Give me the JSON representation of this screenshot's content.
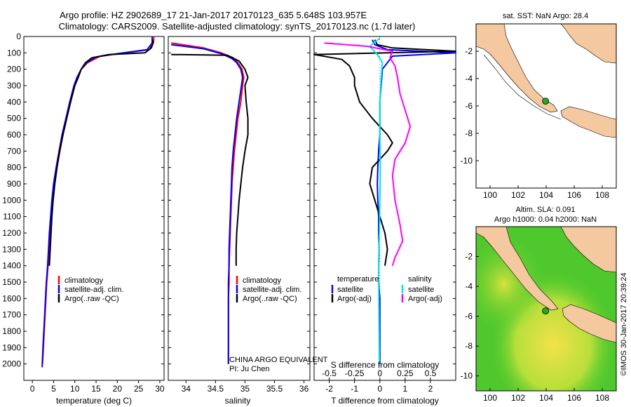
{
  "header": {
    "line1": "Argo profile: HZ 2902689_17 21-Jan-2017 20170123_635 5.648S 103.957E",
    "line2": "Climatology: CARS2009. Satellite-adjusted climatology: synTS_20170123.nc (1.7d later)"
  },
  "colors": {
    "red": "#ff0000",
    "blue": "#0000ff",
    "black": "#000000",
    "cyan": "#00e5e5",
    "magenta": "#ff00ff",
    "land": "#f5c9a0"
  },
  "chart_data": [
    {
      "type": "line",
      "xlabel": "temperature (deg C)",
      "ylabel": "",
      "xlim": [
        -2,
        31
      ],
      "ylim": [
        2100,
        0
      ],
      "xticks": [
        0,
        5,
        10,
        15,
        20,
        25,
        30
      ],
      "yticks": [
        0,
        100,
        200,
        300,
        400,
        500,
        600,
        700,
        800,
        900,
        1000,
        1100,
        1200,
        1300,
        1400,
        1500,
        1600,
        1700,
        1800,
        1900,
        2000
      ],
      "legend": [
        "climatology",
        "satellite-adj. clim.",
        "Argo(..raw -QC)"
      ],
      "series": [
        {
          "name": "climatology",
          "color": "red",
          "points": [
            [
              28.6,
              0
            ],
            [
              28.5,
              40
            ],
            [
              27.5,
              80
            ],
            [
              22,
              100
            ],
            [
              16,
              120
            ],
            [
              13,
              160
            ],
            [
              11.5,
              200
            ],
            [
              10.8,
              250
            ],
            [
              10,
              300
            ],
            [
              9,
              400
            ],
            [
              8,
              500
            ],
            [
              7.2,
              600
            ],
            [
              6.5,
              700
            ],
            [
              5.8,
              800
            ],
            [
              5.2,
              900
            ],
            [
              4.8,
              1000
            ],
            [
              4.5,
              1100
            ],
            [
              4.2,
              1200
            ],
            [
              3.9,
              1300
            ],
            [
              3.7,
              1400
            ],
            [
              3.4,
              1500
            ],
            [
              3.2,
              1600
            ],
            [
              3.0,
              1700
            ],
            [
              2.8,
              1800
            ],
            [
              2.6,
              1900
            ],
            [
              2.4,
              2000
            ]
          ]
        },
        {
          "name": "satellite-adj. clim.",
          "color": "blue",
          "points": [
            [
              28.2,
              0
            ],
            [
              28.2,
              40
            ],
            [
              27,
              80
            ],
            [
              20,
              105
            ],
            [
              15,
              125
            ],
            [
              12.8,
              160
            ],
            [
              11.5,
              200
            ],
            [
              10.5,
              250
            ],
            [
              9.8,
              300
            ],
            [
              8.8,
              400
            ],
            [
              7.9,
              500
            ],
            [
              7,
              600
            ],
            [
              6.3,
              700
            ],
            [
              5.6,
              800
            ],
            [
              5,
              900
            ],
            [
              4.6,
              1000
            ],
            [
              4.3,
              1100
            ],
            [
              4.0,
              1200
            ],
            [
              3.8,
              1300
            ],
            [
              3.6,
              1400
            ],
            [
              3.3,
              1500
            ],
            [
              3.1,
              1600
            ],
            [
              2.9,
              1700
            ],
            [
              2.7,
              1800
            ],
            [
              2.5,
              1900
            ],
            [
              2.3,
              2020
            ]
          ]
        },
        {
          "name": "Argo(..raw -QC)",
          "color": "black",
          "points": [
            [
              28.4,
              20
            ],
            [
              28.3,
              50
            ],
            [
              28,
              70
            ],
            [
              26.5,
              100
            ],
            [
              18,
              110
            ],
            [
              14,
              130
            ],
            [
              12.5,
              160
            ],
            [
              11.5,
              200
            ],
            [
              10.8,
              250
            ],
            [
              10,
              300
            ],
            [
              9,
              400
            ],
            [
              8.1,
              500
            ],
            [
              7.2,
              600
            ],
            [
              6.4,
              700
            ],
            [
              5.8,
              800
            ],
            [
              5.3,
              900
            ],
            [
              4.9,
              1000
            ],
            [
              4.6,
              1100
            ],
            [
              4.4,
              1200
            ],
            [
              4.2,
              1300
            ],
            [
              4.0,
              1400
            ]
          ]
        }
      ]
    },
    {
      "type": "line",
      "xlabel": "salinity",
      "xlim": [
        33.7,
        36.1
      ],
      "ylim": [
        2100,
        0
      ],
      "xticks": [
        34,
        34.5,
        35,
        35.5,
        36
      ],
      "legend": [
        "climatology",
        "satellite-adj. clim.",
        "Argo(..raw -QC)"
      ],
      "annotations": [
        "CHINA ARGO EQUIVALENT",
        "PI: Ju Chen"
      ],
      "series": [
        {
          "name": "climatology",
          "color": "red",
          "points": [
            [
              33.75,
              40
            ],
            [
              34.3,
              70
            ],
            [
              34.6,
              100
            ],
            [
              34.8,
              130
            ],
            [
              34.88,
              160
            ],
            [
              34.95,
              200
            ],
            [
              34.98,
              250
            ],
            [
              34.96,
              300
            ],
            [
              34.93,
              400
            ],
            [
              34.88,
              500
            ],
            [
              34.85,
              600
            ],
            [
              34.82,
              700
            ],
            [
              34.8,
              800
            ],
            [
              34.78,
              900
            ],
            [
              34.77,
              1000
            ],
            [
              34.76,
              1100
            ],
            [
              34.75,
              1200
            ],
            [
              34.74,
              1300
            ],
            [
              34.73,
              1400
            ],
            [
              34.73,
              1500
            ],
            [
              34.72,
              1600
            ],
            [
              34.72,
              1700
            ],
            [
              34.72,
              1800
            ],
            [
              34.72,
              1900
            ],
            [
              34.72,
              2000
            ]
          ]
        },
        {
          "name": "satellite-adj. clim.",
          "color": "blue",
          "points": [
            [
              33.75,
              50
            ],
            [
              34.3,
              75
            ],
            [
              34.6,
              105
            ],
            [
              34.78,
              135
            ],
            [
              34.86,
              160
            ],
            [
              34.93,
              200
            ],
            [
              34.96,
              250
            ],
            [
              34.94,
              300
            ],
            [
              34.9,
              400
            ],
            [
              34.86,
              500
            ],
            [
              34.83,
              600
            ],
            [
              34.8,
              700
            ],
            [
              34.78,
              800
            ],
            [
              34.77,
              900
            ],
            [
              34.76,
              1000
            ],
            [
              34.75,
              1100
            ],
            [
              34.74,
              1200
            ],
            [
              34.73,
              1300
            ],
            [
              34.73,
              1400
            ],
            [
              34.72,
              1500
            ],
            [
              34.72,
              1600
            ],
            [
              34.72,
              1700
            ],
            [
              34.72,
              1800
            ],
            [
              34.72,
              1900
            ],
            [
              34.72,
              2000
            ]
          ]
        },
        {
          "name": "Argo(..raw -QC)",
          "color": "black",
          "points": [
            [
              33.75,
              110
            ],
            [
              34.2,
              112
            ],
            [
              34.7,
              115
            ],
            [
              34.9,
              150
            ],
            [
              35.0,
              200
            ],
            [
              35.05,
              250
            ],
            [
              35.0,
              300
            ],
            [
              35.02,
              400
            ],
            [
              35.05,
              500
            ],
            [
              35.05,
              600
            ],
            [
              35.0,
              700
            ],
            [
              34.96,
              800
            ],
            [
              34.93,
              900
            ],
            [
              34.9,
              1000
            ],
            [
              34.88,
              1100
            ],
            [
              34.86,
              1200
            ],
            [
              34.85,
              1300
            ],
            [
              34.85,
              1400
            ]
          ]
        }
      ]
    },
    {
      "type": "line",
      "xlabel": "T difference from climatology",
      "x2label": "S difference from climatology",
      "xlim": [
        -2.6,
        3.0
      ],
      "ylim": [
        2100,
        0
      ],
      "xticks": [
        -2,
        -1,
        0,
        1,
        2
      ],
      "x2ticks": [
        "-0.5",
        "-0.25",
        "0",
        "0.25",
        "0.5"
      ],
      "legend_headers": [
        "temperature",
        "salinity"
      ],
      "legend": [
        "satellite",
        "Argo(-adj)",
        "satellite",
        "Argo(-adj)"
      ],
      "series": [
        {
          "name": "satellite",
          "color": "blue",
          "points": [
            [
              -0.3,
              20
            ],
            [
              -0.2,
              50
            ],
            [
              0.3,
              80
            ],
            [
              3.0,
              100
            ],
            [
              0.5,
              120
            ],
            [
              0.3,
              160
            ],
            [
              0.1,
              200
            ],
            [
              0.05,
              300
            ],
            [
              0,
              400
            ],
            [
              0,
              500
            ],
            [
              0,
              600
            ],
            [
              -0.05,
              700
            ],
            [
              -0.08,
              800
            ],
            [
              -0.1,
              900
            ],
            [
              -0.08,
              1000
            ],
            [
              -0.05,
              1100
            ],
            [
              -0.05,
              1200
            ],
            [
              -0.03,
              1300
            ],
            [
              -0.05,
              1400
            ],
            [
              -0.05,
              1500
            ],
            [
              0,
              1600
            ],
            [
              0,
              1700
            ],
            [
              0,
              1800
            ],
            [
              0,
              1900
            ],
            [
              0,
              2000
            ]
          ]
        },
        {
          "name": "Argo(-adj)",
          "color": "black",
          "points": [
            [
              -0.2,
              20
            ],
            [
              -0.1,
              50
            ],
            [
              0.5,
              70
            ],
            [
              3.0,
              90
            ],
            [
              -2.6,
              110
            ],
            [
              -1.5,
              140
            ],
            [
              -1.2,
              180
            ],
            [
              -1.0,
              250
            ],
            [
              -1.0,
              300
            ],
            [
              -0.8,
              400
            ],
            [
              -0.3,
              500
            ],
            [
              0.3,
              600
            ],
            [
              0.5,
              650
            ],
            [
              0.3,
              700
            ],
            [
              -0.3,
              800
            ],
            [
              -0.4,
              900
            ],
            [
              -0.2,
              1000
            ],
            [
              0,
              1100
            ],
            [
              0.2,
              1200
            ],
            [
              0.3,
              1300
            ],
            [
              0.2,
              1400
            ]
          ]
        },
        {
          "name": "satellite",
          "color": "cyan",
          "points": [
            [
              0,
              10
            ],
            [
              -0.4,
              60
            ],
            [
              -0.1,
              110
            ],
            [
              0.1,
              160
            ],
            [
              0.05,
              250
            ],
            [
              0,
              400
            ],
            [
              0,
              600
            ],
            [
              0.02,
              800
            ],
            [
              0,
              1000
            ],
            [
              -0.02,
              1200
            ],
            [
              -0.05,
              1400
            ],
            [
              -0.04,
              1600
            ],
            [
              -0.03,
              1800
            ],
            [
              -0.02,
              2000
            ]
          ]
        },
        {
          "name": "Argo(-adj)",
          "color": "magenta",
          "points": [
            [
              -2.2,
              40
            ],
            [
              -0.5,
              60
            ],
            [
              0.5,
              90
            ],
            [
              0.4,
              130
            ],
            [
              0.6,
              180
            ],
            [
              0.7,
              250
            ],
            [
              0.8,
              350
            ],
            [
              1.0,
              450
            ],
            [
              1.2,
              550
            ],
            [
              1.0,
              650
            ],
            [
              0.6,
              750
            ],
            [
              0.5,
              850
            ],
            [
              0.6,
              1000
            ],
            [
              0.8,
              1150
            ],
            [
              0.9,
              1250
            ],
            [
              0.6,
              1350
            ],
            [
              0.5,
              1400
            ]
          ]
        }
      ]
    },
    {
      "type": "scatter",
      "title": "sat. SST: NaN Argo: 28.4",
      "xlim": [
        99,
        109
      ],
      "ylim": [
        -12,
        0
      ],
      "xticks": [
        100,
        102,
        104,
        106,
        108
      ],
      "yticks": [
        -2,
        -4,
        -6,
        -8,
        -10
      ],
      "point": [
        103.957,
        -5.648
      ]
    },
    {
      "type": "heatmap",
      "title": "Altim. SLA: 0.091",
      "subtitle": "Argo h1000: 0.04 h2000: NaN",
      "xlim": [
        99,
        109
      ],
      "ylim": [
        -11,
        0
      ],
      "xticks": [
        100,
        102,
        104,
        106,
        108
      ],
      "yticks": [
        -2,
        -4,
        -6,
        -8,
        -10
      ],
      "point": [
        103.957,
        -5.648
      ]
    }
  ],
  "footer": {
    "stamp": "©IMOS 30-Jan-2017 20:39:24"
  }
}
